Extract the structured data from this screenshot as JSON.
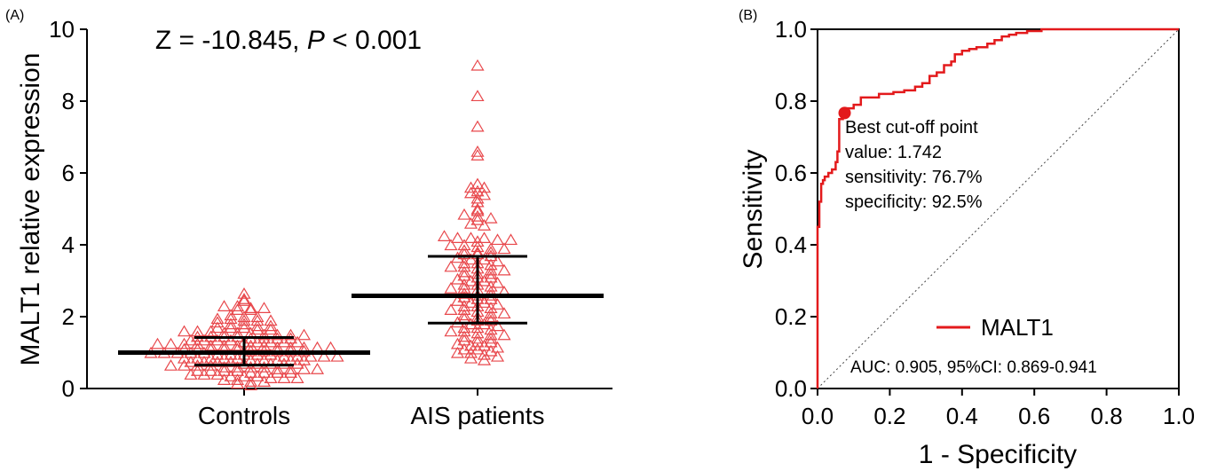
{
  "chart_data": [
    {
      "panel_label": "(A)",
      "type": "scatter",
      "title": "Z = -10.845, ",
      "title_italic": "P",
      "title_tail": " < 0.001",
      "ylabel": "MALT1 relative expression",
      "ylim": [
        0,
        10
      ],
      "yticks": [
        "0",
        "2",
        "4",
        "6",
        "8",
        "10"
      ],
      "categories": [
        "Controls",
        "AIS patients"
      ],
      "marker_color": "#e8474b",
      "marker": "open-triangle",
      "summary": [
        {
          "category": "Controls",
          "median": 1.0,
          "q1": 0.65,
          "q3": 1.42
        },
        {
          "category": "AIS patients",
          "median": 2.58,
          "q1": 1.82,
          "q3": 3.68
        }
      ],
      "series": [
        {
          "category": "Controls",
          "values": [
            2.65,
            2.5,
            2.45,
            2.3,
            2.3,
            2.25,
            2.25,
            2.2,
            2.2,
            2.05,
            2.0,
            2.0,
            1.95,
            1.95,
            1.9,
            1.9,
            1.9,
            1.85,
            1.8,
            1.8,
            1.75,
            1.75,
            1.7,
            1.7,
            1.7,
            1.65,
            1.65,
            1.6,
            1.6,
            1.6,
            1.55,
            1.55,
            1.55,
            1.5,
            1.5,
            1.5,
            1.5,
            1.45,
            1.45,
            1.45,
            1.45,
            1.4,
            1.4,
            1.4,
            1.4,
            1.35,
            1.35,
            1.35,
            1.35,
            1.3,
            1.3,
            1.3,
            1.3,
            1.3,
            1.25,
            1.25,
            1.25,
            1.25,
            1.2,
            1.2,
            1.2,
            1.2,
            1.2,
            1.15,
            1.15,
            1.15,
            1.15,
            1.15,
            1.1,
            1.1,
            1.1,
            1.1,
            1.1,
            1.05,
            1.05,
            1.05,
            1.05,
            1.05,
            1.0,
            1.0,
            1.0,
            1.0,
            1.0,
            0.95,
            0.95,
            0.95,
            0.95,
            0.95,
            0.9,
            0.9,
            0.9,
            0.9,
            0.9,
            0.85,
            0.85,
            0.85,
            0.85,
            0.85,
            0.8,
            0.8,
            0.8,
            0.8,
            0.8,
            0.75,
            0.75,
            0.75,
            0.75,
            0.7,
            0.7,
            0.7,
            0.7,
            0.7,
            0.65,
            0.65,
            0.65,
            0.65,
            0.6,
            0.6,
            0.6,
            0.6,
            0.55,
            0.55,
            0.55,
            0.55,
            0.5,
            0.5,
            0.5,
            0.5,
            0.45,
            0.45,
            0.45,
            0.45,
            0.4,
            0.4,
            0.4,
            0.35,
            0.35,
            0.35,
            0.3,
            0.3,
            0.3,
            0.25,
            0.25,
            0.2,
            0.2,
            0.15,
            0.1
          ]
        },
        {
          "category": "AIS patients",
          "values": [
            9.0,
            8.15,
            7.3,
            6.6,
            6.5,
            5.7,
            5.6,
            5.6,
            5.5,
            5.45,
            5.4,
            5.3,
            5.2,
            5.0,
            4.95,
            4.85,
            4.8,
            4.75,
            4.7,
            4.6,
            4.55,
            4.25,
            4.2,
            4.2,
            4.2,
            4.15,
            4.15,
            4.1,
            4.0,
            4.0,
            3.95,
            3.9,
            3.9,
            3.85,
            3.8,
            3.8,
            3.75,
            3.75,
            3.7,
            3.65,
            3.6,
            3.6,
            3.55,
            3.5,
            3.5,
            3.45,
            3.4,
            3.4,
            3.35,
            3.3,
            3.3,
            3.25,
            3.2,
            3.2,
            3.15,
            3.1,
            3.1,
            3.05,
            3.0,
            3.0,
            2.95,
            2.9,
            2.9,
            2.85,
            2.8,
            2.8,
            2.75,
            2.7,
            2.7,
            2.65,
            2.6,
            2.6,
            2.55,
            2.5,
            2.5,
            2.45,
            2.4,
            2.4,
            2.35,
            2.3,
            2.3,
            2.25,
            2.2,
            2.2,
            2.15,
            2.1,
            2.1,
            2.05,
            2.0,
            2.0,
            1.95,
            1.9,
            1.9,
            1.85,
            1.8,
            1.8,
            1.75,
            1.7,
            1.7,
            1.65,
            1.6,
            1.6,
            1.55,
            1.5,
            1.5,
            1.45,
            1.4,
            1.4,
            1.35,
            1.3,
            1.3,
            1.25,
            1.2,
            1.2,
            1.15,
            1.1,
            1.1,
            1.05,
            1.0,
            1.0,
            0.95,
            0.9,
            0.85,
            0.8
          ]
        }
      ]
    },
    {
      "panel_label": "(B)",
      "type": "line",
      "xlabel": "1 - Specificity",
      "ylabel": "Sensitivity",
      "xlim": [
        0,
        1
      ],
      "ylim": [
        0,
        1
      ],
      "xticks": [
        "0.0",
        "0.2",
        "0.4",
        "0.6",
        "0.8",
        "1.0"
      ],
      "yticks": [
        "0.0",
        "0.2",
        "0.4",
        "0.6",
        "0.8",
        "1.0"
      ],
      "series": [
        {
          "name": "MALT1",
          "color": "#e31a1c",
          "x": [
            0,
            0,
            0.005,
            0.005,
            0.01,
            0.01,
            0.015,
            0.015,
            0.02,
            0.02,
            0.03,
            0.03,
            0.04,
            0.04,
            0.05,
            0.05,
            0.055,
            0.055,
            0.06,
            0.06,
            0.07,
            0.07,
            0.075,
            0.075,
            0.08,
            0.08,
            0.1,
            0.1,
            0.12,
            0.12,
            0.17,
            0.17,
            0.21,
            0.21,
            0.24,
            0.24,
            0.27,
            0.27,
            0.29,
            0.29,
            0.31,
            0.31,
            0.33,
            0.33,
            0.35,
            0.35,
            0.37,
            0.37,
            0.38,
            0.38,
            0.4,
            0.4,
            0.42,
            0.42,
            0.44,
            0.44,
            0.47,
            0.47,
            0.49,
            0.49,
            0.51,
            0.51,
            0.53,
            0.53,
            0.55,
            0.55,
            0.58,
            0.58,
            0.62,
            0.62,
            0.65,
            0.65,
            1.0
          ],
          "y": [
            0,
            0.45,
            0.45,
            0.52,
            0.52,
            0.57,
            0.57,
            0.58,
            0.58,
            0.59,
            0.59,
            0.6,
            0.6,
            0.61,
            0.61,
            0.63,
            0.63,
            0.66,
            0.66,
            0.75,
            0.75,
            0.767,
            0.767,
            0.77,
            0.77,
            0.78,
            0.78,
            0.79,
            0.79,
            0.81,
            0.81,
            0.82,
            0.82,
            0.825,
            0.825,
            0.83,
            0.83,
            0.84,
            0.84,
            0.85,
            0.85,
            0.87,
            0.87,
            0.88,
            0.88,
            0.9,
            0.9,
            0.91,
            0.91,
            0.93,
            0.93,
            0.94,
            0.94,
            0.945,
            0.945,
            0.95,
            0.95,
            0.96,
            0.96,
            0.97,
            0.97,
            0.98,
            0.98,
            0.985,
            0.985,
            0.99,
            0.99,
            0.995,
            0.995,
            1.0,
            1.0,
            1.0,
            1.0
          ]
        }
      ],
      "reference_line": "diagonal",
      "cutoff_point": {
        "x": 0.075,
        "y": 0.767
      },
      "annotation": [
        "Best cut-off point",
        "value: 1.742",
        "sensitivity: 76.7%",
        "specificity: 92.5%"
      ],
      "legend": "bottom-right",
      "auc_text": "AUC: 0.905, 95%CI: 0.869-0.941"
    }
  ]
}
